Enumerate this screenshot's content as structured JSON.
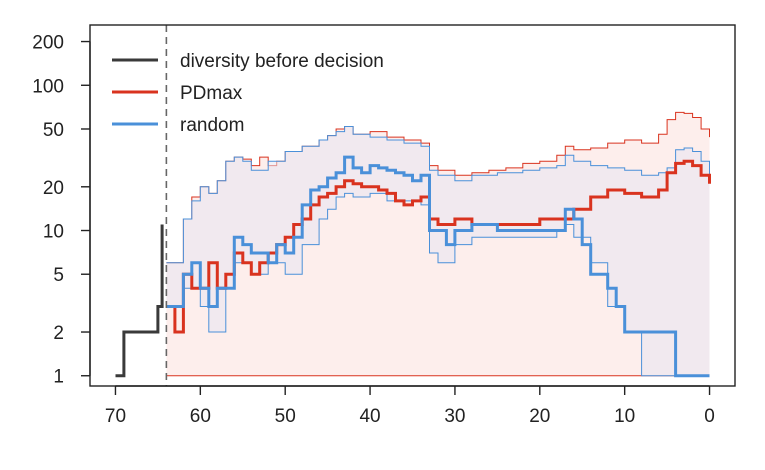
{
  "chart_data": {
    "type": "line",
    "title": "",
    "xlabel": "",
    "ylabel": "",
    "x_reversed": true,
    "y_scale": "log",
    "xlim": [
      73,
      -3
    ],
    "ylim": [
      0.85,
      260
    ],
    "grid": false,
    "legend_position": "top-left",
    "x_ticks": [
      70,
      60,
      50,
      40,
      30,
      20,
      10,
      0
    ],
    "x_tick_labels": [
      "70",
      "60",
      "50",
      "40",
      "30",
      "20",
      "10",
      "0"
    ],
    "y_ticks": [
      1,
      2,
      5,
      10,
      20,
      50,
      100,
      200
    ],
    "y_tick_labels": [
      "1",
      "2",
      "5",
      "10",
      "20",
      "50",
      "100",
      "200"
    ],
    "decision_point": 64,
    "colors": {
      "before": "#3a3a3a",
      "pdmax": "#d9331f",
      "random": "#4a90d9",
      "pdmax_band": "#fdecea",
      "random_band": "#e8e6f2"
    },
    "series": [
      {
        "name": "diversity before decision",
        "key": "before",
        "x": [
          70,
          69,
          65,
          64.5,
          64.5
        ],
        "y": [
          1,
          2,
          3,
          11,
          9
        ]
      },
      {
        "name": "PDmax",
        "key": "pdmax",
        "x": [
          64,
          63,
          62,
          61,
          59,
          58,
          57,
          56,
          55,
          54,
          53,
          52,
          51,
          50,
          49,
          48,
          47,
          46,
          45,
          44,
          43,
          42,
          41,
          40,
          39,
          38,
          37,
          36,
          35,
          34,
          33,
          32,
          30,
          28,
          25,
          22,
          20,
          18,
          16,
          14,
          12,
          10,
          8,
          6,
          5,
          4,
          3,
          2,
          1,
          0
        ],
        "y": [
          3,
          2,
          5,
          4,
          6,
          4,
          5,
          7,
          6,
          5,
          6,
          7,
          8,
          9,
          11,
          12,
          15,
          17,
          18,
          20,
          22,
          21,
          20,
          20,
          19,
          18,
          16,
          15,
          16,
          17,
          12,
          11,
          12,
          11,
          11,
          11,
          12,
          12,
          14,
          17,
          19,
          18,
          17,
          19,
          25,
          29,
          30,
          28,
          24,
          21
        ]
      },
      {
        "name": "random",
        "key": "random",
        "x": [
          64,
          62,
          61,
          60,
          59,
          58,
          56,
          55,
          54,
          52,
          51,
          50,
          49,
          48,
          47,
          46,
          45,
          44,
          43,
          42,
          41,
          40,
          39,
          38,
          37,
          36,
          35,
          34,
          33,
          31,
          30,
          28,
          25,
          22,
          20,
          18,
          17,
          16,
          15,
          14,
          13,
          12,
          11,
          10,
          9,
          8,
          7,
          6,
          5,
          4,
          0
        ],
        "y": [
          3,
          5,
          6,
          4,
          3,
          4,
          9,
          8,
          7,
          6,
          8,
          7,
          9,
          15,
          19,
          20,
          23,
          25,
          32,
          27,
          25,
          28,
          27,
          26,
          25,
          24,
          22,
          24,
          10,
          8,
          10,
          11,
          10,
          10,
          10,
          10,
          14,
          12,
          8,
          5,
          5,
          4,
          3,
          2,
          2,
          2,
          2,
          2,
          2,
          1,
          1
        ]
      }
    ],
    "bands": [
      {
        "key": "pdmax",
        "x": [
          64,
          62,
          61,
          60,
          59,
          58,
          57,
          56,
          55,
          54,
          53,
          52,
          51,
          50,
          48,
          46,
          45,
          44,
          43,
          42,
          40,
          38,
          36,
          34,
          33,
          32,
          30,
          28,
          26,
          24,
          22,
          20,
          18,
          17,
          16,
          14,
          12,
          10,
          8,
          6,
          5,
          4,
          3,
          2,
          1,
          0
        ],
        "lower": [
          1,
          1,
          1,
          1,
          1,
          1,
          1,
          1,
          1,
          1,
          1,
          1,
          1,
          1,
          1,
          1,
          1,
          1,
          1,
          1,
          1,
          1,
          1,
          1,
          1,
          1,
          1,
          1,
          1,
          1,
          1,
          1,
          1,
          1,
          1,
          1,
          1,
          1,
          1,
          1,
          1,
          1,
          1,
          1,
          1,
          1
        ],
        "upper": [
          6,
          12,
          17,
          20,
          18,
          22,
          30,
          32,
          31,
          28,
          32,
          28,
          30,
          35,
          38,
          42,
          45,
          50,
          52,
          46,
          48,
          44,
          42,
          40,
          28,
          26,
          24,
          25,
          26,
          27,
          29,
          30,
          33,
          38,
          36,
          37,
          40,
          42,
          40,
          46,
          58,
          65,
          64,
          60,
          50,
          44
        ]
      },
      {
        "key": "random",
        "x": [
          64,
          62,
          61,
          60,
          59,
          58,
          57,
          56,
          55,
          54,
          52,
          50,
          48,
          46,
          45,
          44,
          43,
          42,
          40,
          38,
          36,
          34,
          33,
          32,
          30,
          28,
          25,
          22,
          20,
          18,
          17,
          16,
          14,
          12,
          10,
          8,
          6,
          5,
          4,
          3,
          2,
          1,
          0
        ],
        "lower": [
          3,
          4,
          4,
          3,
          2,
          2,
          4,
          6,
          6,
          5,
          6,
          5,
          8,
          12,
          14,
          17,
          18,
          17,
          18,
          16,
          16,
          15,
          7,
          6,
          8,
          9,
          9,
          9,
          9,
          10,
          11,
          9,
          6,
          3,
          2,
          1,
          1,
          1,
          1,
          1,
          1,
          1,
          1
        ],
        "upper": [
          6,
          12,
          16,
          20,
          18,
          22,
          30,
          32,
          30,
          26,
          30,
          35,
          38,
          42,
          45,
          48,
          52,
          46,
          44,
          42,
          40,
          38,
          26,
          24,
          22,
          24,
          25,
          26,
          27,
          28,
          33,
          30,
          28,
          27,
          26,
          24,
          25,
          27,
          36,
          37,
          35,
          30,
          23
        ]
      }
    ]
  }
}
